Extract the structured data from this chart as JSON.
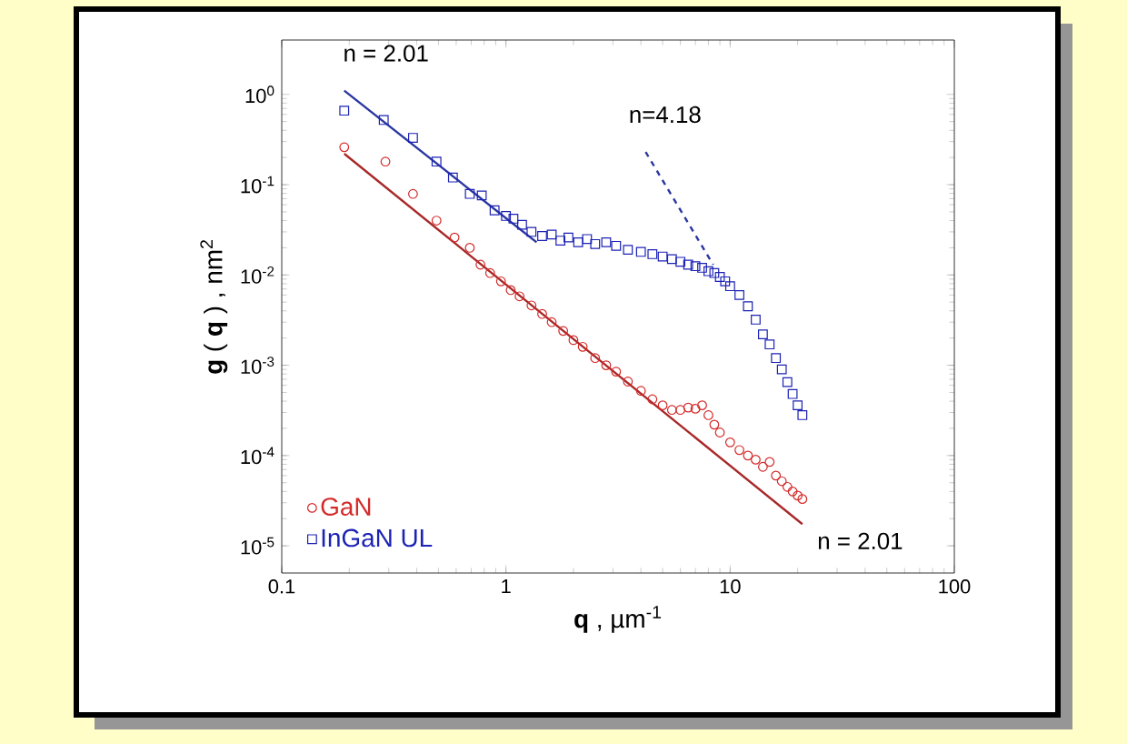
{
  "chart_data": {
    "type": "scatter",
    "xlabel": "**q** , µm$^{-1}$",
    "ylabel": "**g** ( **q** ) , nm$^{2}$",
    "log": "xy",
    "xlim": [
      0.1,
      100
    ],
    "ylim": [
      5e-06,
      4
    ],
    "xticks": [
      0.1,
      1,
      10,
      100
    ],
    "yticks": [
      {
        "value": 1e-05,
        "label": "10$^{-5}$"
      },
      {
        "value": 0.0001,
        "label": "10$^{-4}$"
      },
      {
        "value": 0.001,
        "label": "10$^{-3}$"
      },
      {
        "value": 0.01,
        "label": "10$^{-2}$"
      },
      {
        "value": 0.1,
        "label": "10$^{-1}$"
      },
      {
        "value": 1,
        "label": "10$^{0}$"
      }
    ],
    "grid": false,
    "legend": "bottom left",
    "series": [
      {
        "name": "GaN",
        "marker": "circle",
        "color": "#d42a2a",
        "x": [
          0.19,
          0.29,
          0.385,
          0.49,
          0.59,
          0.69,
          0.77,
          0.85,
          0.95,
          1.05,
          1.15,
          1.3,
          1.45,
          1.6,
          1.8,
          2.0,
          2.2,
          2.5,
          2.8,
          3.1,
          3.5,
          4.0,
          4.5,
          5.0,
          5.5,
          6.0,
          6.5,
          7.0,
          7.5,
          8.0,
          8.5,
          9.0,
          10,
          11,
          12,
          13,
          14,
          15,
          16,
          17,
          18,
          19,
          20,
          21
        ],
        "values": [
          0.26,
          0.18,
          0.079,
          0.04,
          0.026,
          0.02,
          0.013,
          0.0105,
          0.0085,
          0.0068,
          0.0058,
          0.0046,
          0.0037,
          0.003,
          0.0024,
          0.0019,
          0.0016,
          0.0012,
          0.001,
          0.00085,
          0.00066,
          0.00052,
          0.00042,
          0.00036,
          0.00032,
          0.00032,
          0.00034,
          0.00033,
          0.00036,
          0.00028,
          0.00022,
          0.00018,
          0.00014,
          0.000115,
          0.0001,
          9e-05,
          7.5e-05,
          8.5e-05,
          6e-05,
          5.2e-05,
          4.5e-05,
          4e-05,
          3.6e-05,
          3.3e-05
        ]
      },
      {
        "name": "InGaN UL",
        "marker": "square",
        "color": "#1c22b4",
        "x": [
          0.19,
          0.285,
          0.385,
          0.49,
          0.58,
          0.69,
          0.78,
          0.89,
          1.0,
          1.08,
          1.18,
          1.3,
          1.45,
          1.6,
          1.75,
          1.9,
          2.1,
          2.3,
          2.5,
          2.8,
          3.1,
          3.5,
          4.0,
          4.5,
          5.0,
          5.5,
          6.0,
          6.5,
          7.0,
          7.5,
          8.0,
          8.5,
          9.0,
          9.5,
          10,
          11,
          12,
          13,
          14,
          15,
          16,
          17,
          18,
          19,
          20,
          21
        ],
        "values": [
          0.66,
          0.52,
          0.33,
          0.18,
          0.12,
          0.079,
          0.076,
          0.052,
          0.045,
          0.042,
          0.036,
          0.03,
          0.027,
          0.028,
          0.024,
          0.026,
          0.023,
          0.025,
          0.022,
          0.023,
          0.021,
          0.019,
          0.018,
          0.017,
          0.016,
          0.015,
          0.014,
          0.013,
          0.0125,
          0.012,
          0.011,
          0.0105,
          0.0095,
          0.0085,
          0.0075,
          0.006,
          0.0045,
          0.0032,
          0.0022,
          0.0017,
          0.0012,
          0.0009,
          0.00065,
          0.00048,
          0.00036,
          0.00028
        ]
      },
      {
        "type": "line",
        "marker": "none",
        "line_style": "solid",
        "color": "#a82828",
        "x": [
          0.19,
          21
        ],
        "values": [
          0.22,
          1.74e-05
        ]
      },
      {
        "type": "line",
        "marker": "none",
        "line_style": "solid",
        "color": "#2a36a0",
        "x": [
          0.19,
          1.37
        ],
        "values": [
          1.1,
          0.023
        ]
      },
      {
        "type": "line",
        "marker": "none",
        "line_style": "dashed",
        "color": "#2a36a0",
        "x": [
          4.2,
          8.4
        ],
        "values": [
          0.23,
          0.013
        ]
      }
    ],
    "annotations": [
      "n = 2.01",
      "n=4.18",
      "n = 2.01"
    ]
  }
}
